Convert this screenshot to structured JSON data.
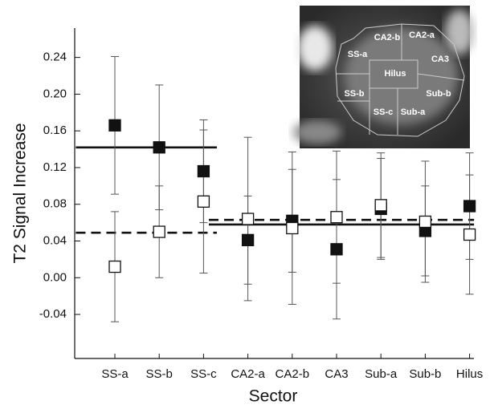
{
  "chart_data": {
    "type": "errorbar-scatter",
    "x_label": "Sector",
    "y_label": "T2 Signal Increase",
    "categories": [
      "SS-a",
      "SS-b",
      "SS-c",
      "CA2-a",
      "CA2-b",
      "CA3",
      "Sub-a",
      "Sub-b",
      "Hilus"
    ],
    "series": [
      {
        "style": "filled",
        "color": "#111111",
        "values": [
          0.166,
          0.142,
          0.116,
          0.041,
          0.062,
          0.031,
          0.075,
          0.051,
          0.078
        ],
        "errors": [
          0.075,
          0.068,
          0.056,
          0.048,
          0.056,
          0.076,
          0.055,
          0.049,
          0.058
        ]
      },
      {
        "style": "open",
        "color": "#111111",
        "values": [
          0.012,
          0.05,
          0.083,
          0.064,
          0.054,
          0.066,
          0.079,
          0.061,
          0.047
        ],
        "errors": [
          0.06,
          0.05,
          0.078,
          0.089,
          0.083,
          0.072,
          0.057,
          0.066,
          0.065
        ]
      }
    ],
    "reference_lines": [
      {
        "style": "solid",
        "value": 0.142,
        "span": [
          0,
          2
        ]
      },
      {
        "style": "dashed",
        "value": 0.049,
        "span": [
          0,
          2
        ]
      },
      {
        "style": "solid",
        "value": 0.058,
        "span": [
          3,
          8
        ]
      },
      {
        "style": "dashed",
        "value": 0.063,
        "span": [
          3,
          8
        ]
      }
    ],
    "ylim": [
      -0.088,
      0.272
    ],
    "yticks": [
      -0.04,
      {
        "value": 0,
        "label": "0.00"
      },
      0.04,
      0.08,
      0.12,
      0.16,
      {
        "value": 0.2,
        "label": "0.20"
      },
      0.24
    ],
    "inset": {
      "labels": [
        "CA2-b",
        "CA2-a",
        "SS-a",
        "CA3",
        "Hilus",
        "SS-b",
        "Sub-b",
        "SS-c",
        "Sub-a"
      ]
    }
  }
}
